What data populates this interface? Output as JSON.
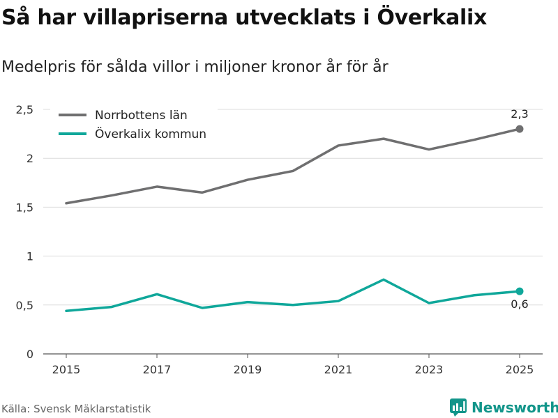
{
  "chart_data": {
    "type": "line",
    "title": "Så har villapriserna utvecklats i Överkalix",
    "subtitle": "Medelpris för sålda villor i miljoner kronor år för år",
    "x": [
      2015,
      2016,
      2017,
      2018,
      2019,
      2020,
      2021,
      2022,
      2023,
      2024,
      2025
    ],
    "x_ticks": [
      "2015",
      "2017",
      "2019",
      "2021",
      "2023",
      "2025"
    ],
    "y_ticks": [
      "0",
      "0,5",
      "1",
      "1,5",
      "2",
      "2,5"
    ],
    "ylim": [
      0,
      2.5
    ],
    "xlabel": "",
    "ylabel": "",
    "series": [
      {
        "name": "Norrbottens län",
        "color": "#6f6f70",
        "values": [
          1.54,
          1.62,
          1.71,
          1.65,
          1.78,
          1.87,
          2.13,
          2.2,
          2.09,
          2.19,
          2.3
        ],
        "end_label": "2,3"
      },
      {
        "name": "Överkalix kommun",
        "color": "#0fa79a",
        "values": [
          0.44,
          0.48,
          0.61,
          0.47,
          0.53,
          0.5,
          0.54,
          0.76,
          0.52,
          0.6,
          0.64
        ],
        "end_label": "0,6"
      }
    ],
    "legend": "top-left",
    "grid": true
  },
  "source": "Källa: Svensk Mäklarstatistik",
  "brand": "Newsworthy",
  "icon": "newsworthy-logo-icon"
}
